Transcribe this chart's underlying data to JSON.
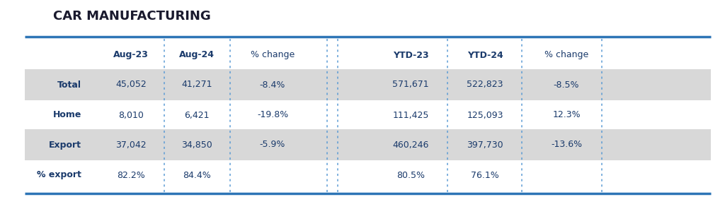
{
  "title": "CAR MANUFACTURING",
  "title_color": "#1a1a2e",
  "header_color": "#1a3a6b",
  "background_color": "#ffffff",
  "row_bg_shaded": "#d8d8d8",
  "accent_line_color": "#2e75b6",
  "dashed_line_color": "#5b9bd5",
  "rows": [
    {
      "label": "Total",
      "shaded": true,
      "aug23": "45,052",
      "aug24": "41,271",
      "pct1": "-8.4%",
      "ytd23": "571,671",
      "ytd24": "522,823",
      "pct2": "-8.5%"
    },
    {
      "label": "Home",
      "shaded": false,
      "aug23": "8,010",
      "aug24": "6,421",
      "pct1": "-19.8%",
      "ytd23": "111,425",
      "ytd24": "125,093",
      "pct2": "12.3%"
    },
    {
      "label": "Export",
      "shaded": true,
      "aug23": "37,042",
      "aug24": "34,850",
      "pct1": "-5.9%",
      "ytd23": "460,246",
      "ytd24": "397,730",
      "pct2": "-13.6%"
    },
    {
      "label": "% export",
      "shaded": false,
      "aug23": "82.2%",
      "aug24": "84.4%",
      "pct1": "",
      "ytd23": "80.5%",
      "ytd24": "76.1%",
      "pct2": ""
    }
  ],
  "figsize": [
    10.24,
    2.79
  ],
  "dpi": 100
}
